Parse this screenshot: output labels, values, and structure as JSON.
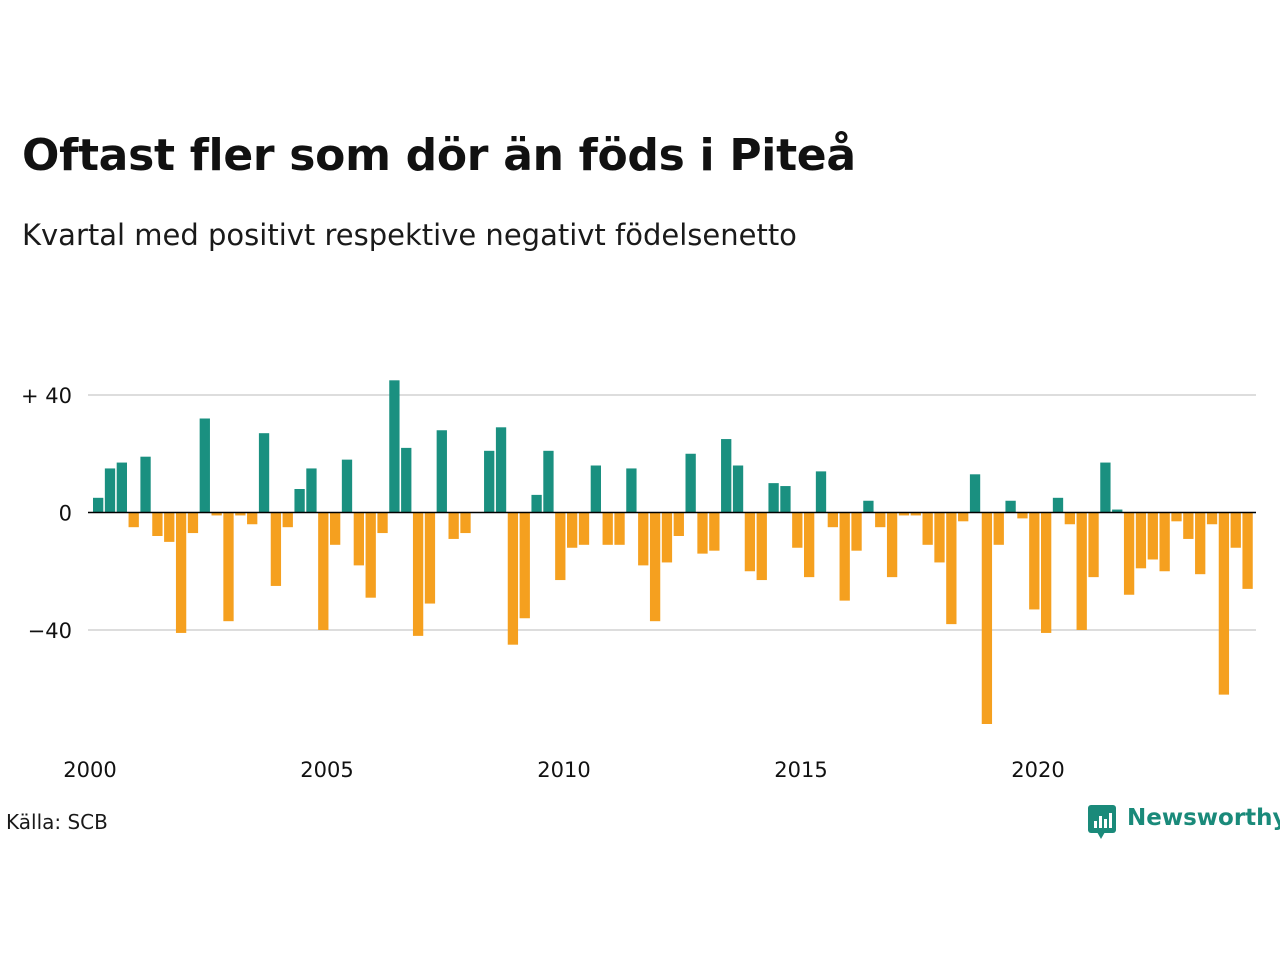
{
  "title": "Oftast fler som dör än föds i Piteå",
  "subtitle": "Kvartal med positivt respektive negativt födelsenetto",
  "source": "Källa: SCB",
  "brand": "Newsworthy",
  "colors": {
    "positive": "#1a9080",
    "negative": "#f5a01f",
    "grid": "#dddddd",
    "axis": "#000000",
    "brand": "#1a8a7a"
  },
  "chart_data": {
    "type": "bar",
    "x_start": 2000,
    "x_step": "quarter",
    "ylim": [
      -72,
      46
    ],
    "y_ticks": [
      {
        "value": 40,
        "label": "+ 40"
      },
      {
        "value": 0,
        "label": "0"
      },
      {
        "value": -40,
        "label": "−40"
      }
    ],
    "x_ticks": [
      {
        "value": 2000,
        "label": "2000"
      },
      {
        "value": 2005,
        "label": "2005"
      },
      {
        "value": 2010,
        "label": "2010"
      },
      {
        "value": 2015,
        "label": "2015"
      },
      {
        "value": 2020,
        "label": "2020"
      }
    ],
    "grid": true,
    "values": [
      5,
      15,
      17,
      -5,
      19,
      -8,
      -10,
      -41,
      -7,
      32,
      -1,
      -37,
      -1,
      -4,
      27,
      -25,
      -5,
      8,
      15,
      -40,
      -11,
      18,
      -18,
      -29,
      -7,
      45,
      22,
      -42,
      -31,
      28,
      -9,
      -7,
      0,
      21,
      29,
      -45,
      -36,
      6,
      21,
      -23,
      -12,
      -11,
      16,
      -11,
      -11,
      15,
      -18,
      -37,
      -17,
      -8,
      20,
      -14,
      -13,
      25,
      16,
      -20,
      -23,
      10,
      9,
      -12,
      -22,
      14,
      -5,
      -30,
      -13,
      4,
      -5,
      -22,
      -1,
      -1,
      -11,
      -17,
      -38,
      -3,
      13,
      -72,
      -11,
      4,
      -2,
      -33,
      -41,
      5,
      -4,
      -40,
      -22,
      17,
      1,
      -28,
      -19,
      -16,
      -20,
      -3,
      -9,
      -21,
      -4,
      -62,
      -12,
      -26
    ]
  }
}
